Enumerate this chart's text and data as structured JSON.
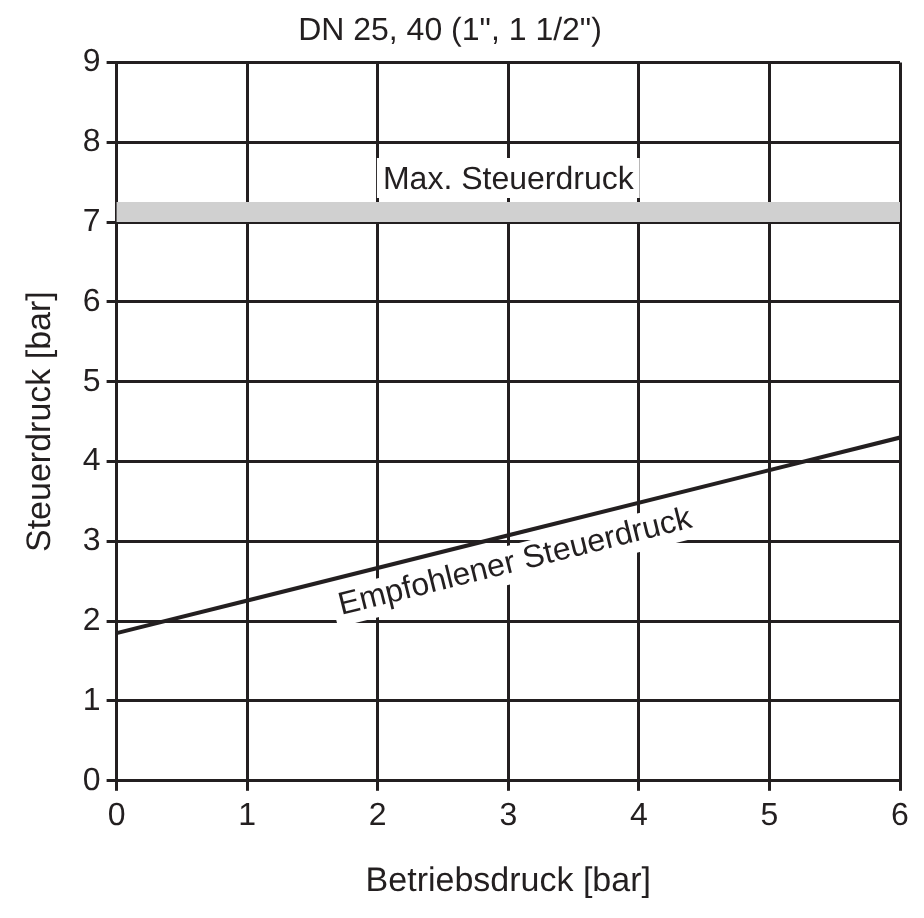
{
  "chart_data": {
    "type": "line",
    "title": "DN 25, 40 (1\", 1 1/2\")",
    "xlabel": "Betriebsdruck [bar]",
    "ylabel": "Steuerdruck [bar]",
    "x": [
      0,
      6
    ],
    "series": [
      {
        "name": "Empfohlener Steuerdruck",
        "color": "#231f20",
        "values": [
          1.85,
          4.3
        ]
      }
    ],
    "xlim": [
      0,
      6
    ],
    "xticks": [
      0,
      1,
      2,
      3,
      4,
      5,
      6
    ],
    "ylim": [
      0,
      9
    ],
    "yticks": [
      0,
      1,
      2,
      3,
      4,
      5,
      6,
      7,
      8,
      9
    ],
    "bands": [
      {
        "axis": "y",
        "from": 7.0,
        "to": 7.25,
        "label": "Max. Steuerdruck",
        "color": "#d0d0d0"
      }
    ],
    "grid": true,
    "marker": "none",
    "line_style": "solid",
    "legend": false
  }
}
